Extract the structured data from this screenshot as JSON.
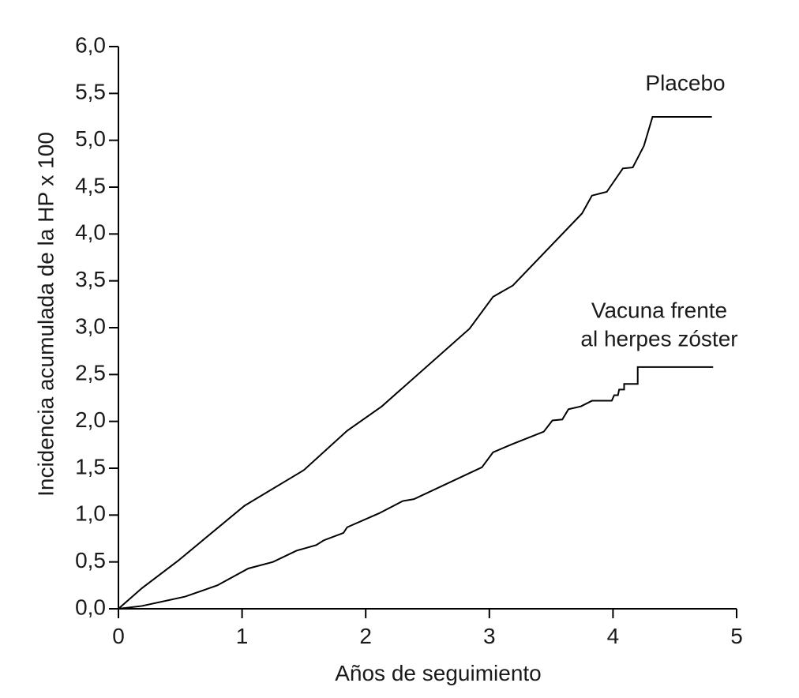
{
  "chart_data": {
    "type": "line",
    "x_label": "Años de seguimiento",
    "y_label": "Incidencia acumulada de la HP x 100",
    "xlim": [
      0,
      5
    ],
    "xticks": [
      0,
      1,
      2,
      3,
      4,
      5
    ],
    "ylim": [
      0,
      6
    ],
    "yticks": [
      {
        "value": 0,
        "label": "0,0"
      },
      {
        "value": 0.5,
        "label": "0,5"
      },
      {
        "value": 1,
        "label": "1,0"
      },
      {
        "value": 1.5,
        "label": "1,5"
      },
      {
        "value": 2,
        "label": "2,0"
      },
      {
        "value": 2.5,
        "label": "2,5"
      },
      {
        "value": 3,
        "label": "3,0"
      },
      {
        "value": 3.5,
        "label": "3,5"
      },
      {
        "value": 4,
        "label": "4,0"
      },
      {
        "value": 4.5,
        "label": "4,5"
      },
      {
        "value": 5,
        "label": "5,0"
      },
      {
        "value": 5.5,
        "label": "5,5"
      },
      {
        "value": 6,
        "label": "6,0"
      }
    ],
    "grid": false,
    "series": [
      {
        "name": [
          "Placebo"
        ],
        "color": "#000000",
        "x": [
          0,
          0.19,
          0.48,
          1.02,
          1.5,
          1.85,
          2.13,
          2.84,
          3.03,
          3.19,
          3.75,
          3.83,
          3.95,
          4.08,
          4.16,
          4.25,
          4.32,
          4.8
        ],
        "values": [
          0,
          0.22,
          0.51,
          1.1,
          1.48,
          1.9,
          2.16,
          2.99,
          3.33,
          3.45,
          4.22,
          4.41,
          4.45,
          4.7,
          4.71,
          4.94,
          5.25,
          5.25
        ]
      },
      {
        "name": [
          "Vacuna frente",
          "al herpes zóster"
        ],
        "color": "#000000",
        "x": [
          0,
          0.19,
          0.54,
          0.8,
          1.05,
          1.25,
          1.44,
          1.6,
          1.66,
          1.82,
          1.85,
          2.11,
          2.3,
          2.39,
          2.94,
          3.03,
          3.19,
          3.44,
          3.51,
          3.59,
          3.64,
          3.74,
          3.83,
          3.99,
          4.01,
          4.04,
          4.05,
          4.09,
          4.09,
          4.2,
          4.2,
          4.81
        ],
        "values": [
          0,
          0.03,
          0.13,
          0.25,
          0.43,
          0.5,
          0.62,
          0.68,
          0.73,
          0.81,
          0.87,
          1.02,
          1.15,
          1.17,
          1.51,
          1.67,
          1.76,
          1.89,
          2.01,
          2.02,
          2.13,
          2.16,
          2.22,
          2.22,
          2.28,
          2.28,
          2.34,
          2.34,
          2.4,
          2.4,
          2.58,
          2.58
        ]
      }
    ]
  }
}
